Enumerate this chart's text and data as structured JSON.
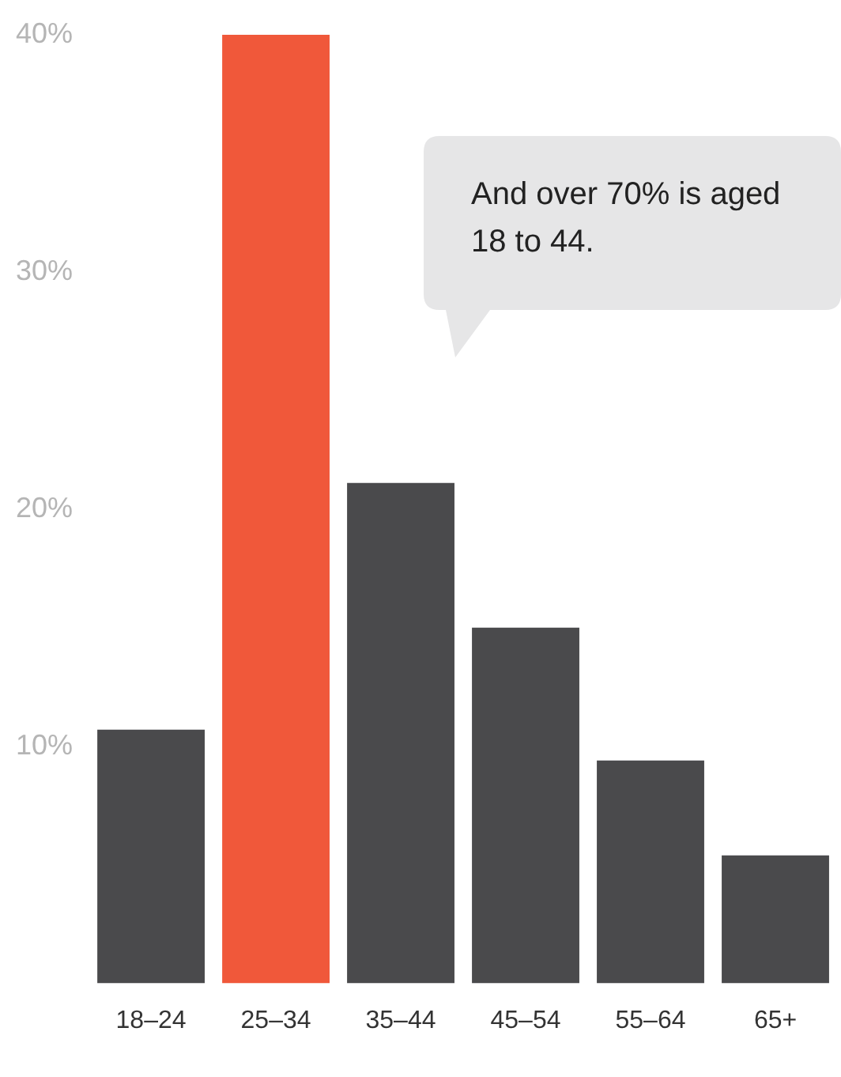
{
  "chart_data": {
    "type": "bar",
    "categories": [
      "18–24",
      "25–34",
      "35–44",
      "45–54",
      "55–64",
      "65+"
    ],
    "values": [
      10.7,
      40,
      21.1,
      15,
      9.4,
      5.4
    ],
    "colors": [
      "#4a4a4c",
      "#f0583a",
      "#4a4a4c",
      "#4a4a4c",
      "#4a4a4c",
      "#4a4a4c"
    ],
    "ylim": [
      0,
      40
    ],
    "yticks": [
      {
        "value": 10,
        "label": "10%"
      },
      {
        "value": 20,
        "label": "20%"
      },
      {
        "value": 30,
        "label": "30%"
      },
      {
        "value": 40,
        "label": "40%"
      }
    ],
    "grid": false,
    "annotations": [
      "And over 70% is aged 18 to 44."
    ]
  }
}
